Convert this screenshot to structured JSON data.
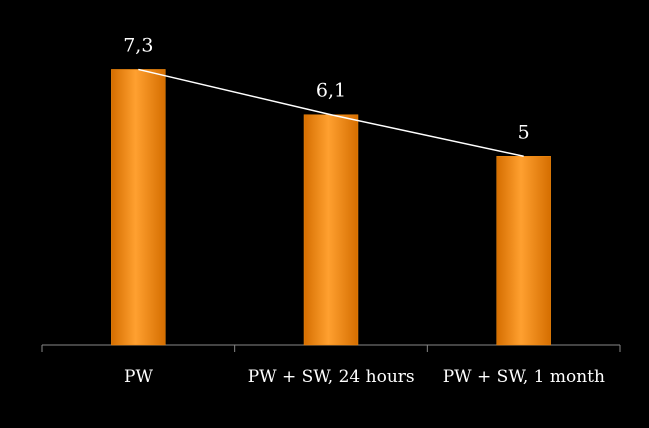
{
  "chart_data": {
    "type": "bar",
    "categories": [
      "PW",
      "PW + SW, 24 hours",
      "PW + SW, 1 month"
    ],
    "values": [
      7.3,
      6.1,
      5
    ],
    "value_labels": [
      "7,3",
      "6,1",
      "5"
    ],
    "color": "#f08a10",
    "line_color": "#ffffff",
    "ylim": [
      0,
      8
    ]
  }
}
